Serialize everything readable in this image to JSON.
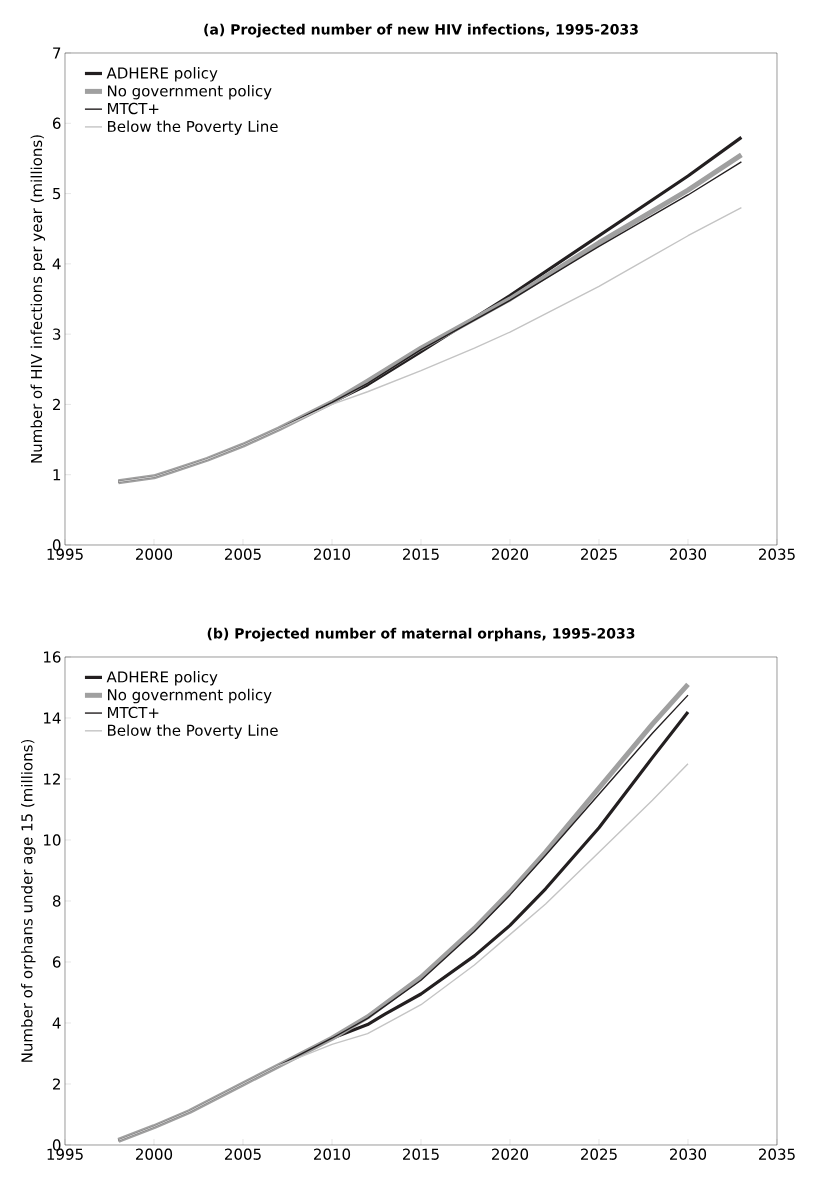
{
  "chart_data": [
    {
      "type": "line",
      "title": "(a) Projected number of new HIV infections, 1995-2033",
      "ylabel": "Number of HIV infections per year (millions)",
      "xlim": [
        1995,
        2035
      ],
      "xticks": [
        1995,
        2000,
        2005,
        2010,
        2015,
        2020,
        2025,
        2030,
        2035
      ],
      "ylim": [
        0,
        7
      ],
      "yticks": [
        0,
        1,
        2,
        3,
        4,
        5,
        6,
        7
      ],
      "grid": false,
      "legend": "top left",
      "marker": "none",
      "line_style": "solid",
      "series": [
        {
          "name": "ADHERE policy",
          "color": "#231f20",
          "x": [
            1998,
            2000,
            2001,
            2003,
            2005,
            2007,
            2010,
            2012,
            2015,
            2020,
            2025,
            2030,
            2033
          ],
          "values": [
            0.9,
            0.97,
            1.05,
            1.22,
            1.42,
            1.65,
            2.03,
            2.28,
            2.75,
            3.55,
            4.4,
            5.25,
            5.8
          ]
        },
        {
          "name": "No government policy",
          "color": "#a0a0a0",
          "x": [
            1998,
            2000,
            2001,
            2003,
            2005,
            2007,
            2010,
            2012,
            2015,
            2020,
            2025,
            2030,
            2033
          ],
          "values": [
            0.9,
            0.97,
            1.05,
            1.22,
            1.42,
            1.65,
            2.03,
            2.33,
            2.8,
            3.5,
            4.3,
            5.05,
            5.55
          ]
        },
        {
          "name": "MTCT+",
          "color": "#231f20",
          "x": [
            1998,
            2000,
            2001,
            2003,
            2005,
            2007,
            2010,
            2012,
            2015,
            2020,
            2025,
            2030,
            2033
          ],
          "values": [
            0.9,
            0.97,
            1.05,
            1.22,
            1.42,
            1.65,
            2.03,
            2.3,
            2.78,
            3.48,
            4.25,
            4.98,
            5.45
          ]
        },
        {
          "name": "Below the Poverty Line",
          "color": "#c4c4c4",
          "x": [
            1998,
            2000,
            2001,
            2003,
            2005,
            2007,
            2010,
            2012,
            2015,
            2018,
            2020,
            2025,
            2030,
            2033
          ],
          "values": [
            0.9,
            0.97,
            1.05,
            1.22,
            1.42,
            1.65,
            2.0,
            2.18,
            2.48,
            2.8,
            3.03,
            3.68,
            4.4,
            4.8
          ]
        }
      ]
    },
    {
      "type": "line",
      "title": "(b) Projected number of maternal orphans, 1995-2033",
      "ylabel": "Number of orphans under age 15 (millions)",
      "xlim": [
        1995,
        2035
      ],
      "xticks": [
        1995,
        2000,
        2005,
        2010,
        2015,
        2020,
        2025,
        2030,
        2035
      ],
      "ylim": [
        0,
        16
      ],
      "yticks": [
        0,
        2,
        4,
        6,
        8,
        10,
        12,
        14,
        16
      ],
      "grid": false,
      "legend": "top left",
      "marker": "none",
      "line_style": "solid",
      "series": [
        {
          "name": "ADHERE policy",
          "color": "#231f20",
          "x": [
            1998,
            2000,
            2002,
            2005,
            2007,
            2010,
            2012,
            2013,
            2015,
            2018,
            2020,
            2022,
            2025,
            2028,
            2030
          ],
          "values": [
            0.15,
            0.6,
            1.1,
            2.0,
            2.6,
            3.5,
            3.95,
            4.3,
            4.95,
            6.2,
            7.2,
            8.4,
            10.4,
            12.7,
            14.2
          ]
        },
        {
          "name": "No government policy",
          "color": "#a0a0a0",
          "x": [
            1998,
            2000,
            2002,
            2005,
            2007,
            2010,
            2012,
            2015,
            2018,
            2020,
            2022,
            2025,
            2028,
            2030
          ],
          "values": [
            0.15,
            0.6,
            1.1,
            2.0,
            2.6,
            3.5,
            4.2,
            5.5,
            7.1,
            8.3,
            9.6,
            11.7,
            13.8,
            15.1
          ]
        },
        {
          "name": "MTCT+",
          "color": "#231f20",
          "x": [
            1998,
            2000,
            2002,
            2005,
            2007,
            2010,
            2012,
            2015,
            2018,
            2020,
            2022,
            2025,
            2028,
            2030
          ],
          "values": [
            0.15,
            0.6,
            1.1,
            2.0,
            2.6,
            3.5,
            4.15,
            5.4,
            7.0,
            8.2,
            9.5,
            11.5,
            13.5,
            14.75
          ]
        },
        {
          "name": "Below the Poverty Line",
          "color": "#c4c4c4",
          "x": [
            1998,
            2000,
            2002,
            2005,
            2007,
            2010,
            2012,
            2015,
            2018,
            2020,
            2022,
            2025,
            2028,
            2030
          ],
          "values": [
            0.15,
            0.6,
            1.1,
            2.0,
            2.6,
            3.3,
            3.65,
            4.6,
            5.9,
            6.9,
            7.9,
            9.6,
            11.3,
            12.5
          ]
        }
      ]
    }
  ]
}
